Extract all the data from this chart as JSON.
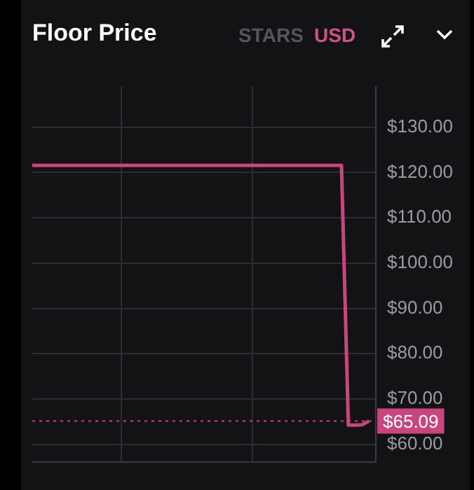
{
  "chart_data": {
    "type": "line",
    "title": "Floor Price",
    "annotations": [
      "STARS",
      "USD"
    ],
    "categories": [
      null,
      null,
      null,
      null,
      null,
      null,
      null,
      null,
      null,
      null,
      null,
      null,
      null,
      null,
      null,
      null,
      null,
      null,
      null,
      null,
      null,
      null,
      null,
      null,
      null,
      null,
      null,
      null,
      null,
      null,
      null,
      null,
      null,
      null,
      null,
      null,
      null,
      null,
      null,
      null,
      null,
      null,
      null,
      null,
      null,
      null,
      null,
      null,
      null,
      null,
      null
    ],
    "series": [
      {
        "color": "#c8457e",
        "values": [
          121.6,
          121.6,
          121.6,
          121.6,
          121.6,
          121.6,
          121.6,
          121.6,
          121.6,
          121.6,
          121.6,
          121.6,
          121.6,
          121.6,
          121.6,
          121.6,
          121.6,
          121.6,
          121.6,
          121.6,
          121.6,
          121.6,
          121.6,
          121.6,
          121.6,
          121.6,
          121.6,
          121.6,
          121.6,
          121.6,
          121.6,
          121.6,
          121.6,
          121.6,
          121.6,
          121.6,
          121.6,
          121.6,
          121.6,
          121.6,
          121.6,
          121.6,
          121.6,
          121.6,
          121.6,
          121.6,
          64.2,
          64.2,
          64.3,
          65.09,
          null
        ]
      }
    ],
    "ylim": [
      56,
      139
    ],
    "yticks": [
      {
        "value": 60,
        "label": "$60.00"
      },
      {
        "value": 70,
        "label": "$70.00"
      },
      {
        "value": 80,
        "label": "$80.00"
      },
      {
        "value": 90,
        "label": "$90.00"
      },
      {
        "value": 100,
        "label": "$100.00"
      },
      {
        "value": 110,
        "label": "$110.00"
      },
      {
        "value": 120,
        "label": "$120.00"
      },
      {
        "value": 130,
        "label": "$130.00"
      }
    ],
    "ref_lines": [
      {
        "axis": "y",
        "value": 65.09,
        "label": "$65.09",
        "color": "#c8457e",
        "line_style": "dotted"
      }
    ],
    "grid": true,
    "legend": false,
    "marker": "none",
    "line_style": "solid",
    "tick_labels": "y"
  }
}
